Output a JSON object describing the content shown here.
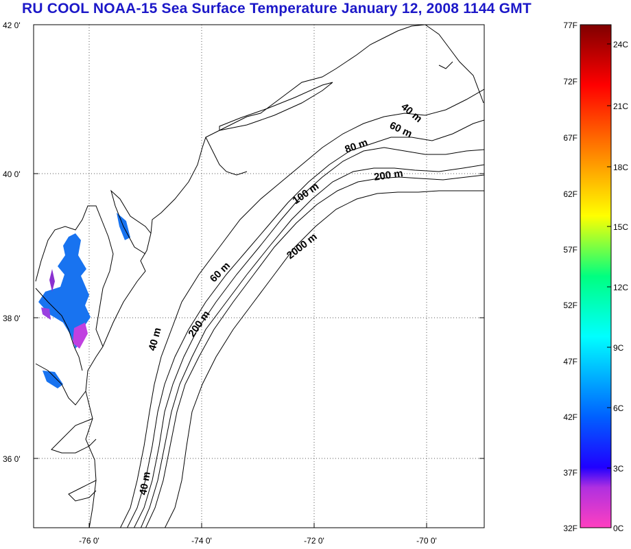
{
  "title": "RU COOL  NOAA-15 Sea Surface Temperature January 12, 2008 1144 GMT",
  "map": {
    "lon_range": [
      -77,
      -69
    ],
    "lat_range": [
      35,
      42
    ],
    "lat_labels": [
      "42 0'",
      "40 0'",
      "38 0'",
      "36 0'"
    ],
    "lon_labels": [
      "-76 0'",
      "-74 0'",
      "-72 0'",
      "-70 0'"
    ],
    "gridlines": "dotted",
    "contour_labels": [
      "40 m",
      "60 m",
      "80 m",
      "200 m",
      "100 m",
      "2000 m",
      "60 m",
      "200 m",
      "40 m",
      "40 m"
    ]
  },
  "colorbar": {
    "range_f": [
      32,
      77
    ],
    "fahrenheit_labels": [
      "77F",
      "72F",
      "67F",
      "62F",
      "57F",
      "52F",
      "47F",
      "42F",
      "37F",
      "32F"
    ],
    "celsius_labels": [
      "24C",
      "21C",
      "18C",
      "15C",
      "12C",
      "9C",
      "6C",
      "3C",
      "0C"
    ],
    "colors": [
      "#7f0000",
      "#ff0000",
      "#ff8000",
      "#ffff00",
      "#00ff80",
      "#00ffff",
      "#0080ff",
      "#0000ff",
      "#8000ff",
      "#ff40c0"
    ]
  }
}
